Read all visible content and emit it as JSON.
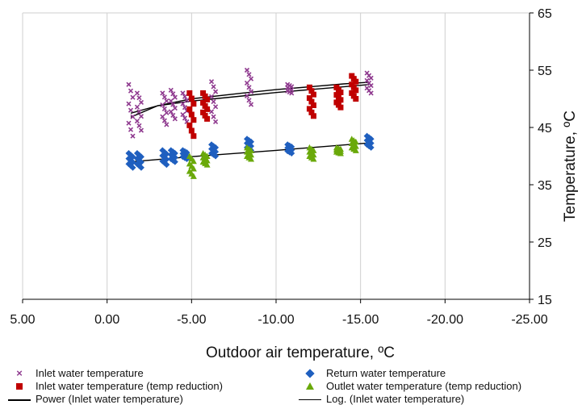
{
  "chart_data": {
    "type": "scatter",
    "xlabel": "Outdoor air temperature, ºC",
    "ylabel": "Temperature, ºC",
    "x_axis_reversed": true,
    "xlim": [
      5,
      -25
    ],
    "ylim": [
      15,
      65
    ],
    "x_ticks": [
      "5.00",
      "0.00",
      "-5.00",
      "-10.00",
      "-15.00",
      "-20.00",
      "-25.00"
    ],
    "x_tick_values": [
      5,
      0,
      -5,
      -10,
      -15,
      -20,
      -25
    ],
    "y_ticks": [
      "15",
      "25",
      "35",
      "45",
      "55",
      "65"
    ],
    "y_tick_values": [
      15,
      25,
      35,
      45,
      55,
      65
    ],
    "y_axis_position": "right",
    "grid": {
      "vertical": true,
      "horizontal": false
    },
    "legend_position": "bottom",
    "series": [
      {
        "name": "Inlet water temperature",
        "marker": "x",
        "color": "#8f3a8f",
        "clusters": [
          {
            "x": -1.4,
            "y_min": 43.5,
            "y_max": 52.5
          },
          {
            "x": -1.9,
            "y_min": 44.5,
            "y_max": 51.0
          },
          {
            "x": -3.4,
            "y_min": 45.5,
            "y_max": 51.0
          },
          {
            "x": -3.9,
            "y_min": 46.5,
            "y_max": 51.5
          },
          {
            "x": -4.6,
            "y_min": 46.0,
            "y_max": 51.0
          },
          {
            "x": -6.3,
            "y_min": 46.0,
            "y_max": 53.0
          },
          {
            "x": -8.4,
            "y_min": 49.0,
            "y_max": 55.0
          },
          {
            "x": -10.8,
            "y_min": 51.0,
            "y_max": 52.5
          },
          {
            "x": -15.5,
            "y_min": 51.0,
            "y_max": 54.5
          }
        ]
      },
      {
        "name": "Inlet water temperature (temp reduction)",
        "marker": "square",
        "color": "#c00000",
        "clusters": [
          {
            "x": -5.0,
            "y_min": 43.5,
            "y_max": 51.0
          },
          {
            "x": -5.8,
            "y_min": 46.5,
            "y_max": 51.0
          },
          {
            "x": -12.1,
            "y_min": 47.0,
            "y_max": 52.0
          },
          {
            "x": -13.7,
            "y_min": 48.5,
            "y_max": 52.0
          },
          {
            "x": -14.6,
            "y_min": 50.0,
            "y_max": 54.0
          }
        ]
      },
      {
        "name": "Return water temperature",
        "marker": "diamond",
        "color": "#1f5fbf",
        "clusters": [
          {
            "x": -1.4,
            "y_min": 38.0,
            "y_max": 40.5
          },
          {
            "x": -1.9,
            "y_min": 38.0,
            "y_max": 40.5
          },
          {
            "x": -3.4,
            "y_min": 38.5,
            "y_max": 41.0
          },
          {
            "x": -3.9,
            "y_min": 39.0,
            "y_max": 41.0
          },
          {
            "x": -4.6,
            "y_min": 39.5,
            "y_max": 41.0
          },
          {
            "x": -6.3,
            "y_min": 40.0,
            "y_max": 42.0
          },
          {
            "x": -8.4,
            "y_min": 41.0,
            "y_max": 43.0
          },
          {
            "x": -10.8,
            "y_min": 40.5,
            "y_max": 42.0
          },
          {
            "x": -15.5,
            "y_min": 41.5,
            "y_max": 43.5
          }
        ]
      },
      {
        "name": "Outlet water temperature (temp reduction)",
        "marker": "triangle",
        "color": "#6aa90a",
        "clusters": [
          {
            "x": -5.0,
            "y_min": 36.5,
            "y_max": 40.0
          },
          {
            "x": -5.8,
            "y_min": 38.5,
            "y_max": 40.5
          },
          {
            "x": -8.4,
            "y_min": 39.5,
            "y_max": 41.5
          },
          {
            "x": -12.1,
            "y_min": 39.5,
            "y_max": 41.5
          },
          {
            "x": -13.7,
            "y_min": 40.5,
            "y_max": 41.5
          },
          {
            "x": -14.6,
            "y_min": 41.0,
            "y_max": 43.0
          }
        ]
      },
      {
        "name": "Power (Inlet water temperature)",
        "style": "line",
        "color": "#000000",
        "x": [
          -1.4,
          -3,
          -5,
          -8,
          -10,
          -12,
          -14,
          -15.5
        ],
        "y": [
          46.8,
          48.8,
          50.0,
          51.0,
          51.6,
          52.1,
          52.6,
          52.9
        ]
      },
      {
        "name": "Log. (Inlet water temperature)",
        "style": "line",
        "color": "#000000",
        "x": [
          -1.4,
          -3,
          -5,
          -8,
          -10,
          -12,
          -14,
          -15.5
        ],
        "y": [
          47.5,
          48.8,
          49.6,
          50.5,
          51.1,
          51.6,
          52.1,
          52.5
        ]
      },
      {
        "name": "",
        "style": "line",
        "color": "#000000",
        "x": [
          -1.4,
          -5,
          -10,
          -15.5
        ],
        "y": [
          39.0,
          39.9,
          41.0,
          42.3
        ]
      }
    ]
  },
  "legend": {
    "item_inlet": "Inlet water temperature",
    "item_inlet_reduction": "Inlet water temperature (temp reduction)",
    "item_power": "Power (Inlet water temperature)",
    "item_return": "Return water temperature",
    "item_outlet_reduction": "Outlet water temperature (temp reduction)",
    "item_log": "Log. (Inlet water temperature)"
  }
}
